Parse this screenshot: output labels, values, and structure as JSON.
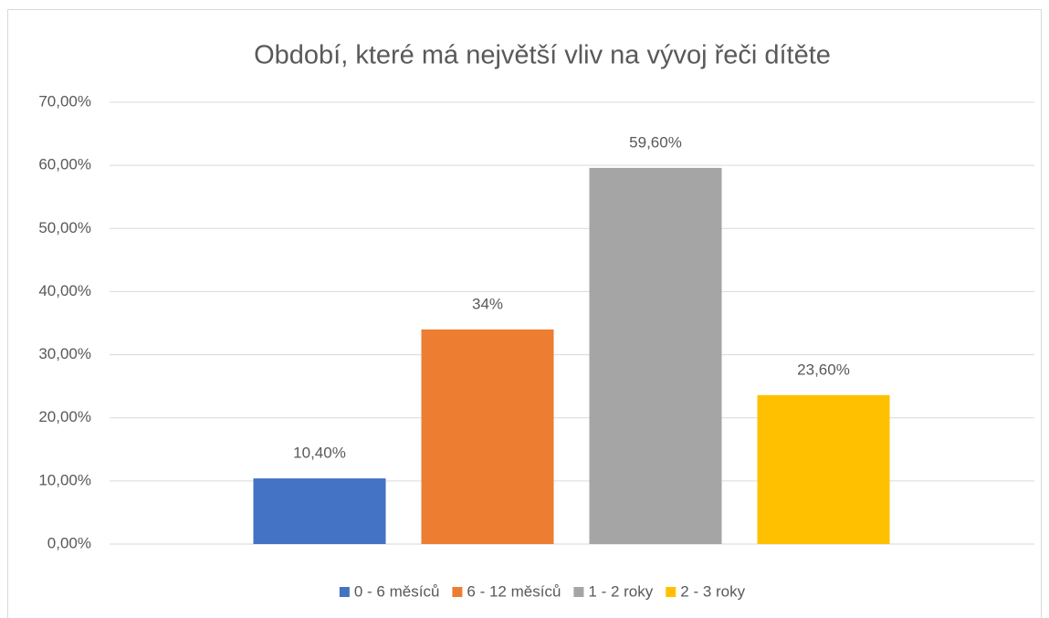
{
  "chart_data": {
    "type": "bar",
    "title": "Období, které má největší vliv na vývoj řeči dítěte",
    "categories": [
      null
    ],
    "series": [
      {
        "name": "0 - 6 měsíců",
        "color": "#4472c4",
        "values": [
          10.4
        ],
        "value_labels": [
          "10,40%"
        ]
      },
      {
        "name": "6 - 12 měsíců",
        "color": "#ed7d31",
        "values": [
          34
        ],
        "value_labels": [
          "34%"
        ]
      },
      {
        "name": "1 - 2 roky",
        "color": "#a5a5a5",
        "values": [
          59.6
        ],
        "value_labels": [
          "59,60%"
        ]
      },
      {
        "name": "2 - 3 roky",
        "color": "#ffc000",
        "values": [
          23.6
        ],
        "value_labels": [
          "23,60%"
        ]
      }
    ],
    "ylim": [
      0,
      70
    ],
    "yticks": [
      {
        "value": 0,
        "label": "0,00%"
      },
      {
        "value": 10,
        "label": "10,00%"
      },
      {
        "value": 20,
        "label": "20,00%"
      },
      {
        "value": 30,
        "label": "30,00%"
      },
      {
        "value": 40,
        "label": "40,00%"
      },
      {
        "value": 50,
        "label": "50,00%"
      },
      {
        "value": 60,
        "label": "60,00%"
      },
      {
        "value": 70,
        "label": "70,00%"
      }
    ],
    "grid": true,
    "legend": "bottom"
  }
}
